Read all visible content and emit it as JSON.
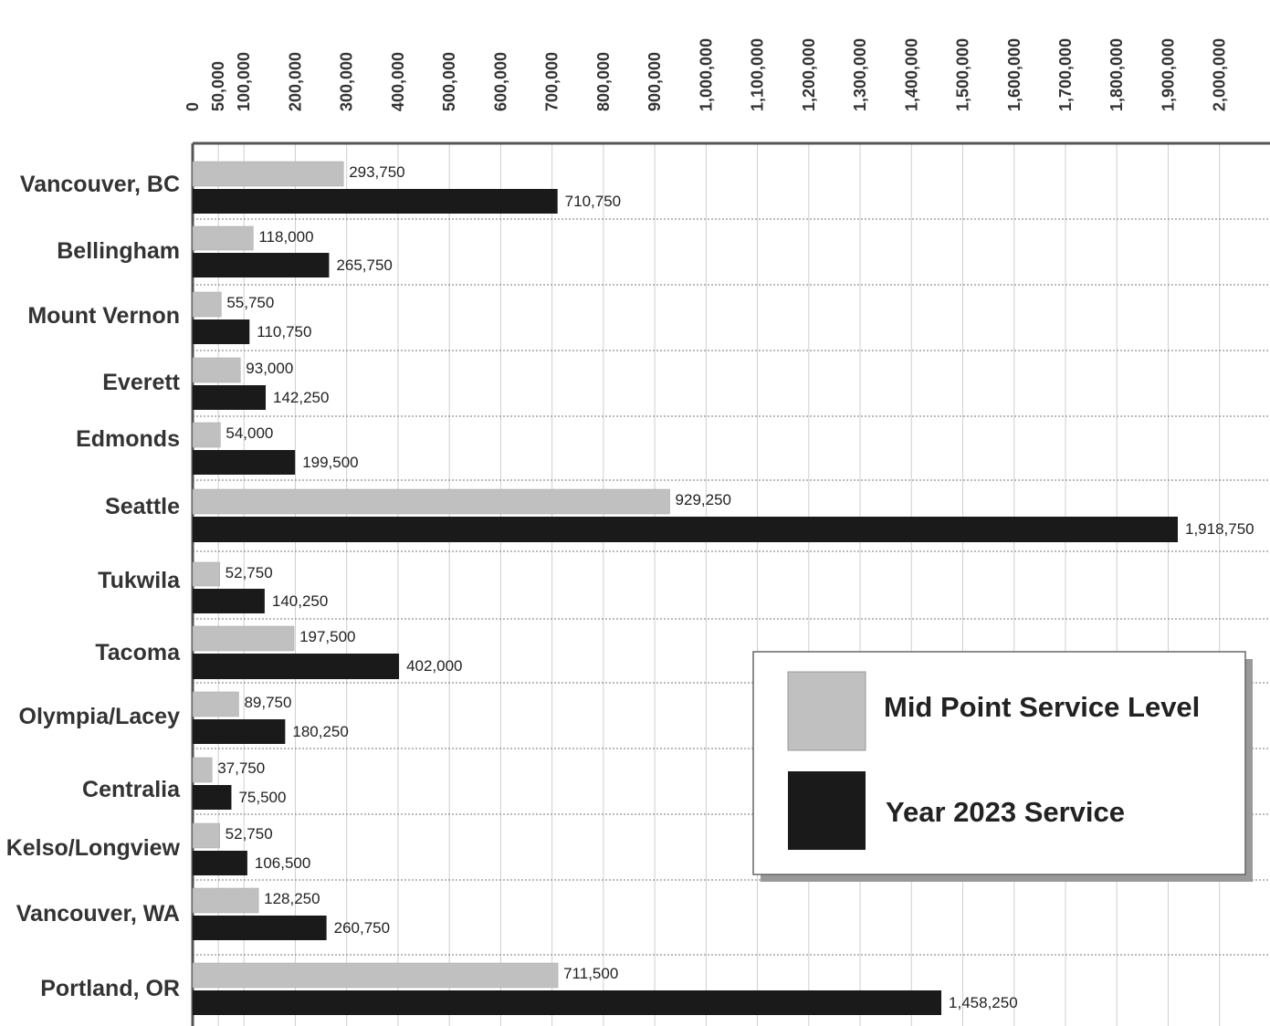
{
  "chart_data": {
    "type": "bar",
    "orientation": "horizontal",
    "categories": [
      "Vancouver, BC",
      "Bellingham",
      "Mount Vernon",
      "Everett",
      "Edmonds",
      "Seattle",
      "Tukwila",
      "Tacoma",
      "Olympia/Lacey",
      "Centralia",
      "Kelso/Longview",
      "Vancouver, WA",
      "Portland, OR"
    ],
    "series": [
      {
        "name": "Mid Point Service Level",
        "color": "#c0c0c0",
        "values": [
          293750,
          118000,
          55750,
          93000,
          54000,
          929250,
          52750,
          197500,
          89750,
          37750,
          52750,
          128250,
          711500
        ],
        "labels": [
          "293,750",
          "118,000",
          "55,750",
          "93,000",
          "54,000",
          "929,250",
          "52,750",
          "197,500",
          "89,750",
          "37,750",
          "52,750",
          "128,250",
          "711,500"
        ]
      },
      {
        "name": "Year 2023 Service",
        "color": "#1a1a1a",
        "values": [
          710750,
          265750,
          110750,
          142250,
          199500,
          1918750,
          140250,
          402000,
          180250,
          75500,
          106500,
          260750,
          1458250
        ],
        "labels": [
          "710,750",
          "265,750",
          "110,750",
          "142,250",
          "199,500",
          "1,918,750",
          "140,250",
          "402,000",
          "180,250",
          "75,500",
          "106,500",
          "260,750",
          "1,458,250"
        ]
      }
    ],
    "x_ticks": [
      0,
      50000,
      100000,
      200000,
      300000,
      400000,
      500000,
      600000,
      700000,
      800000,
      900000,
      1000000,
      1100000,
      1200000,
      1300000,
      1400000,
      1500000,
      1600000,
      1700000,
      1800000,
      1900000,
      2000000
    ],
    "x_tick_labels": [
      "0",
      "50,000",
      "100,000",
      "200,000",
      "300,000",
      "400,000",
      "500,000",
      "600,000",
      "700,000",
      "800,000",
      "900,000",
      "1,000,000",
      "1,100,000",
      "1,200,000",
      "1,300,000",
      "1,400,000",
      "1,500,000",
      "1,600,000",
      "1,700,000",
      "1,800,000",
      "1,900,000",
      "2,000,000"
    ],
    "xlim": [
      0,
      2000000
    ],
    "x_axis_position": "top",
    "grid": true,
    "legend_position": "bottom-right",
    "title": "",
    "xlabel": "",
    "ylabel": ""
  }
}
